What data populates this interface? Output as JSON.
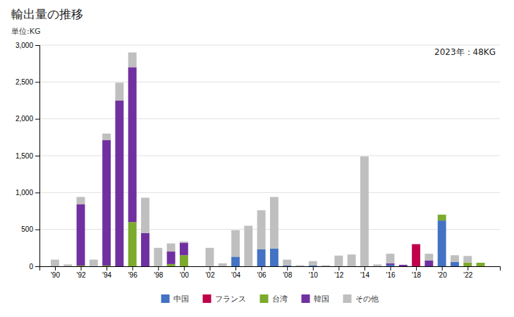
{
  "chart_data": {
    "type": "bar",
    "stacked": true,
    "title": "輸出量の推移",
    "ylabel": "単位:KG",
    "annotation": "2023年：48KG",
    "x": [
      1990,
      1991,
      1992,
      1993,
      1994,
      1995,
      1996,
      1997,
      1998,
      1999,
      2000,
      2001,
      2002,
      2003,
      2004,
      2005,
      2006,
      2007,
      2008,
      2009,
      2010,
      2011,
      2012,
      2013,
      2014,
      2015,
      2016,
      2017,
      2018,
      2019,
      2020,
      2021,
      2022,
      2023
    ],
    "xlim": [
      1988.8,
      2024.5
    ],
    "xticks": [
      {
        "value": 1990,
        "label": "'90"
      },
      {
        "value": 1992,
        "label": "'92"
      },
      {
        "value": 1994,
        "label": "'94"
      },
      {
        "value": 1996,
        "label": "'96"
      },
      {
        "value": 1998,
        "label": "'98"
      },
      {
        "value": 2000,
        "label": "'00"
      },
      {
        "value": 2002,
        "label": "'02"
      },
      {
        "value": 2004,
        "label": "'04"
      },
      {
        "value": 2006,
        "label": "'06"
      },
      {
        "value": 2008,
        "label": "'08"
      },
      {
        "value": 2010,
        "label": "'10"
      },
      {
        "value": 2012,
        "label": "'12"
      },
      {
        "value": 2014,
        "label": "'14"
      },
      {
        "value": 2016,
        "label": "'16"
      },
      {
        "value": 2018,
        "label": "'18"
      },
      {
        "value": 2020,
        "label": "'20"
      },
      {
        "value": 2022,
        "label": "'22"
      }
    ],
    "ylim": [
      0,
      3000
    ],
    "yticks": [
      0,
      500,
      {
        "value": 1000,
        "label": "1,000"
      },
      {
        "value": 1500,
        "label": "1,500"
      },
      {
        "value": 2000,
        "label": "2,000"
      },
      {
        "value": 2500,
        "label": "2,500"
      },
      {
        "value": 3000,
        "label": "3,000"
      }
    ],
    "grid": true,
    "legend": "bottom",
    "series": [
      {
        "name": "中国",
        "color": "#4472c4",
        "values": [
          0,
          0,
          0,
          0,
          0,
          0,
          0,
          0,
          0,
          0,
          0,
          0,
          0,
          0,
          130,
          0,
          230,
          240,
          10,
          0,
          10,
          0,
          0,
          0,
          0,
          0,
          20,
          0,
          0,
          0,
          620,
          60,
          0,
          0
        ]
      },
      {
        "name": "フランス",
        "color": "#c0004a",
        "values": [
          0,
          0,
          0,
          0,
          0,
          0,
          0,
          0,
          0,
          0,
          0,
          0,
          0,
          0,
          0,
          0,
          0,
          0,
          0,
          0,
          0,
          0,
          0,
          0,
          0,
          0,
          0,
          0,
          300,
          0,
          0,
          0,
          0,
          0
        ]
      },
      {
        "name": "台湾",
        "color": "#7caa2d",
        "values": [
          0,
          0,
          10,
          0,
          10,
          0,
          600,
          0,
          0,
          30,
          150,
          0,
          0,
          0,
          0,
          0,
          0,
          0,
          0,
          0,
          0,
          0,
          0,
          0,
          0,
          0,
          0,
          0,
          0,
          0,
          80,
          0,
          50,
          48
        ]
      },
      {
        "name": "韓国",
        "color": "#7030a0",
        "values": [
          0,
          0,
          830,
          0,
          1700,
          2250,
          2100,
          450,
          0,
          170,
          170,
          0,
          0,
          0,
          0,
          0,
          0,
          0,
          0,
          0,
          0,
          0,
          0,
          0,
          0,
          0,
          20,
          20,
          0,
          80,
          0,
          0,
          0,
          0
        ]
      },
      {
        "name": "その他",
        "color": "#bfbfbf",
        "values": [
          90,
          25,
          100,
          90,
          90,
          240,
          200,
          480,
          250,
          110,
          15,
          0,
          250,
          40,
          360,
          550,
          530,
          700,
          80,
          15,
          60,
          15,
          145,
          160,
          1490,
          25,
          130,
          0,
          0,
          90,
          0,
          90,
          90,
          0
        ]
      }
    ]
  }
}
